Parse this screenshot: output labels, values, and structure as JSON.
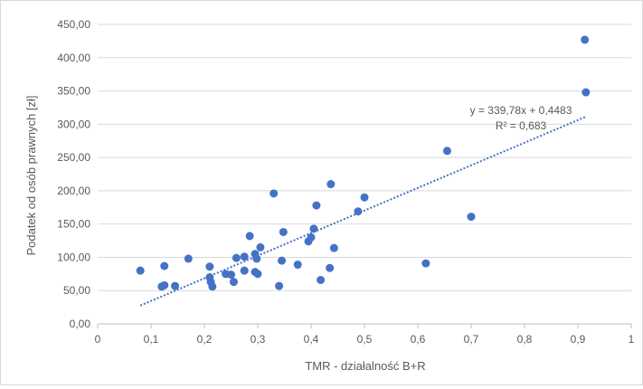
{
  "chart_data": {
    "type": "scatter",
    "xlabel": "TMR - działalność B+R",
    "ylabel": "Podatek od osób prawnych [zł]",
    "xlim": [
      0,
      1
    ],
    "ylim": [
      0,
      450
    ],
    "x_ticks": [
      "0",
      "0,1",
      "0,2",
      "0,3",
      "0,4",
      "0,5",
      "0,6",
      "0,7",
      "0,8",
      "0,9",
      "1"
    ],
    "y_ticks": [
      "0,00",
      "50,00",
      "100,00",
      "150,00",
      "200,00",
      "250,00",
      "300,00",
      "350,00",
      "400,00",
      "450,00"
    ],
    "grid": "horizontal",
    "marker_color": "#4472c4",
    "trendline": {
      "type": "linear",
      "slope": 339.78,
      "intercept": 0.4483,
      "x_range": [
        0.08,
        0.915
      ],
      "equation_label": "y = 339,78x + 0,4483",
      "r2_label": "R² = 0,683",
      "color": "#4472c4",
      "style": "dotted"
    },
    "points": [
      {
        "x": 0.08,
        "y": 80
      },
      {
        "x": 0.12,
        "y": 56
      },
      {
        "x": 0.125,
        "y": 58
      },
      {
        "x": 0.125,
        "y": 87
      },
      {
        "x": 0.145,
        "y": 57
      },
      {
        "x": 0.17,
        "y": 98
      },
      {
        "x": 0.21,
        "y": 86
      },
      {
        "x": 0.21,
        "y": 70
      },
      {
        "x": 0.212,
        "y": 63
      },
      {
        "x": 0.215,
        "y": 56
      },
      {
        "x": 0.24,
        "y": 75
      },
      {
        "x": 0.25,
        "y": 74
      },
      {
        "x": 0.255,
        "y": 63
      },
      {
        "x": 0.26,
        "y": 99
      },
      {
        "x": 0.275,
        "y": 101
      },
      {
        "x": 0.275,
        "y": 80
      },
      {
        "x": 0.285,
        "y": 132
      },
      {
        "x": 0.295,
        "y": 105
      },
      {
        "x": 0.295,
        "y": 78
      },
      {
        "x": 0.298,
        "y": 98
      },
      {
        "x": 0.3,
        "y": 75
      },
      {
        "x": 0.305,
        "y": 115
      },
      {
        "x": 0.33,
        "y": 196
      },
      {
        "x": 0.34,
        "y": 57
      },
      {
        "x": 0.345,
        "y": 95
      },
      {
        "x": 0.348,
        "y": 138
      },
      {
        "x": 0.375,
        "y": 89
      },
      {
        "x": 0.395,
        "y": 124
      },
      {
        "x": 0.4,
        "y": 130
      },
      {
        "x": 0.405,
        "y": 143
      },
      {
        "x": 0.41,
        "y": 178
      },
      {
        "x": 0.418,
        "y": 66
      },
      {
        "x": 0.435,
        "y": 84
      },
      {
        "x": 0.437,
        "y": 210
      },
      {
        "x": 0.443,
        "y": 114
      },
      {
        "x": 0.488,
        "y": 169
      },
      {
        "x": 0.5,
        "y": 190
      },
      {
        "x": 0.615,
        "y": 91
      },
      {
        "x": 0.655,
        "y": 260
      },
      {
        "x": 0.7,
        "y": 161
      },
      {
        "x": 0.913,
        "y": 427
      },
      {
        "x": 0.915,
        "y": 348
      }
    ]
  }
}
